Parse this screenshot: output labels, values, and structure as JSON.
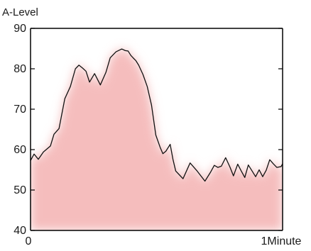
{
  "chart_data": {
    "type": "area",
    "ylabel": "A-Level",
    "xlabel": "",
    "x_tick_labels": [
      "0",
      "1Minute"
    ],
    "xlim": [
      0,
      1
    ],
    "ylim": [
      40,
      90
    ],
    "yticks": [
      40,
      50,
      60,
      70,
      80,
      90
    ],
    "grid": false,
    "x_unit": "minute",
    "series": [
      {
        "x": [
          0,
          0.014,
          0.031,
          0.051,
          0.079,
          0.093,
          0.113,
          0.136,
          0.158,
          0.178,
          0.192,
          0.206,
          0.22,
          0.234,
          0.254,
          0.277,
          0.299,
          0.316,
          0.339,
          0.362,
          0.376,
          0.387,
          0.398,
          0.407,
          0.418,
          0.429,
          0.446,
          0.463,
          0.48,
          0.497,
          0.514,
          0.525,
          0.537,
          0.554,
          0.565,
          0.576,
          0.605,
          0.633,
          0.661,
          0.692,
          0.715,
          0.729,
          0.743,
          0.757,
          0.774,
          0.791,
          0.805,
          0.822,
          0.836,
          0.85,
          0.864,
          0.879,
          0.893,
          0.907,
          0.921,
          0.935,
          0.949,
          0.963,
          0.977,
          0.994,
          1
        ],
        "values": [
          57.3,
          58.9,
          57.6,
          59.4,
          60.9,
          63.8,
          65.2,
          72.6,
          75.6,
          80.0,
          80.9,
          80.2,
          79.4,
          76.7,
          78.8,
          76.0,
          79.1,
          82.7,
          84.2,
          84.9,
          84.5,
          84.4,
          83.3,
          82.7,
          82.0,
          80.9,
          78.6,
          75.6,
          71.0,
          63.6,
          60.6,
          59.0,
          59.6,
          61.3,
          57.6,
          54.7,
          52.8,
          56.7,
          54.7,
          52.2,
          54.5,
          56.1,
          55.6,
          55.9,
          58.0,
          55.7,
          53.5,
          56.4,
          54.7,
          53.1,
          56.2,
          54.7,
          53.3,
          55.0,
          53.3,
          54.9,
          57.5,
          56.5,
          55.6,
          55.8,
          56.5
        ]
      }
    ],
    "colors": {
      "fill": "#f5bdbd",
      "fill_edge": "#ffffff",
      "line": "#111111",
      "axis": "#000000"
    }
  }
}
